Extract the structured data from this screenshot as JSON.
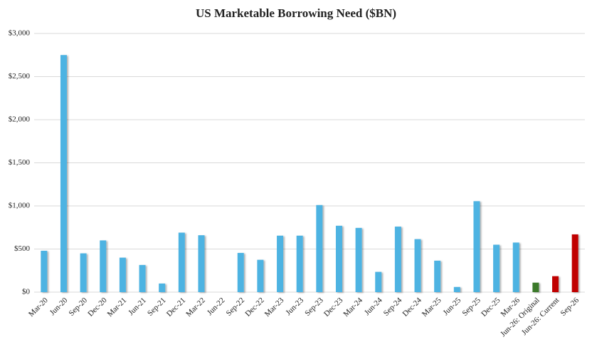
{
  "chart_data": {
    "type": "bar",
    "title": "US Marketable Borrowing Need ($BN)",
    "categories": [
      "Mar-20",
      "Jun-20",
      "Sep-20",
      "Dec-20",
      "Mar-21",
      "Jun-21",
      "Sep-21",
      "Dec-21",
      "Mar-22",
      "Jun-22",
      "Sep-22",
      "Dec-22",
      "Mar-23",
      "Jun-23",
      "Sep-23",
      "Dec-23",
      "Mar-24",
      "Jun-24",
      "Sep-24",
      "Dec-24",
      "Mar-25",
      "Jun-25",
      "Sep-25",
      "Dec-25",
      "Mar-26",
      "Jun-26: Original",
      "Jun-26: Current",
      "Sep-26"
    ],
    "values": [
      480,
      2750,
      450,
      600,
      400,
      315,
      100,
      690,
      660,
      0,
      455,
      375,
      655,
      655,
      1010,
      770,
      745,
      235,
      760,
      615,
      365,
      60,
      1055,
      550,
      575,
      110,
      185,
      670
    ],
    "colors": [
      "#4db3e2",
      "#4db3e2",
      "#4db3e2",
      "#4db3e2",
      "#4db3e2",
      "#4db3e2",
      "#4db3e2",
      "#4db3e2",
      "#4db3e2",
      "#4db3e2",
      "#4db3e2",
      "#4db3e2",
      "#4db3e2",
      "#4db3e2",
      "#4db3e2",
      "#4db3e2",
      "#4db3e2",
      "#4db3e2",
      "#4db3e2",
      "#4db3e2",
      "#4db3e2",
      "#4db3e2",
      "#4db3e2",
      "#4db3e2",
      "#4db3e2",
      "#3b7a2a",
      "#c00000",
      "#c00000"
    ],
    "ylim": [
      0,
      3000
    ],
    "yticks": [
      {
        "value": 0,
        "label": "$0"
      },
      {
        "value": 500,
        "label": "$500"
      },
      {
        "value": 1000,
        "label": "$1,000"
      },
      {
        "value": 1500,
        "label": "$1,500"
      },
      {
        "value": 2000,
        "label": "$2,000"
      },
      {
        "value": 2500,
        "label": "$2,500"
      },
      {
        "value": 3000,
        "label": "$3,000"
      }
    ],
    "grid": true
  }
}
